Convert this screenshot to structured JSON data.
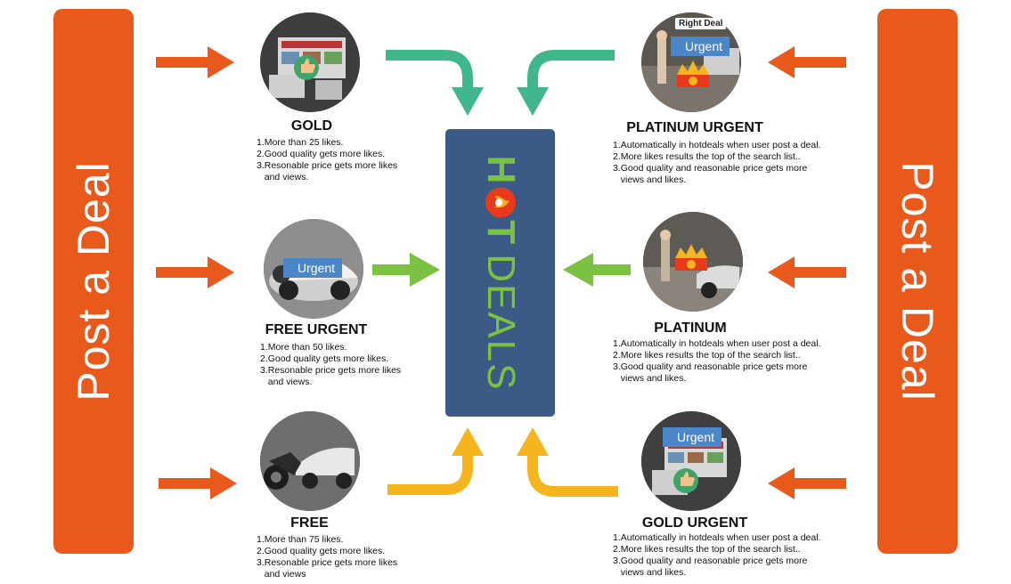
{
  "banners": {
    "left": "Post a Deal",
    "right": "Post a Deal"
  },
  "center": {
    "hot_prefix": "H",
    "hot_suffix": "T",
    "deals": "DEALS"
  },
  "tag_label": "Urgent",
  "brand_badge": "Right Deal",
  "colors": {
    "orange": "#e8591b",
    "teal": "#3fb68b",
    "green": "#7bc142",
    "yellow": "#f7b51d",
    "navy": "#3b5a85"
  },
  "tiers": {
    "gold": {
      "title": "GOLD",
      "lines": [
        "1.More than 25 likes.",
        "2.Good quality gets more likes.",
        "3.Resonable price gets more likes",
        "   and views."
      ]
    },
    "free_urgent": {
      "title": "FREE URGENT",
      "lines": [
        "1.More than 50 likes.",
        "2.Good quality gets more likes.",
        "3.Resonable price gets more likes",
        "   and views."
      ]
    },
    "free": {
      "title": "FREE",
      "lines": [
        "1.More than 75 likes.",
        "2.Good quality gets more likes.",
        "3.Resonable price gets more likes",
        "   and views"
      ]
    },
    "platinum_urgent": {
      "title": "PLATINUM URGENT",
      "lines": [
        "1.Automatically in hotdeals when user post a deal.",
        "2.More likes results the top of the search list..",
        "3.Good quality and reasonable price gets more",
        "   views and likes."
      ]
    },
    "platinum": {
      "title": "PLATINUM",
      "lines": [
        "1.Automatically in hotdeals when user post a deal.",
        "2.More likes results the top of the search list..",
        "3.Good quality and reasonable price gets more",
        "   views and likes."
      ]
    },
    "gold_urgent": {
      "title": "GOLD URGENT",
      "lines": [
        "1.Automatically in hotdeals when user post a deal.",
        "2.More likes results the top of the search list..",
        "3.Good quality and reasonable price gets more",
        "   views and likes."
      ]
    }
  }
}
